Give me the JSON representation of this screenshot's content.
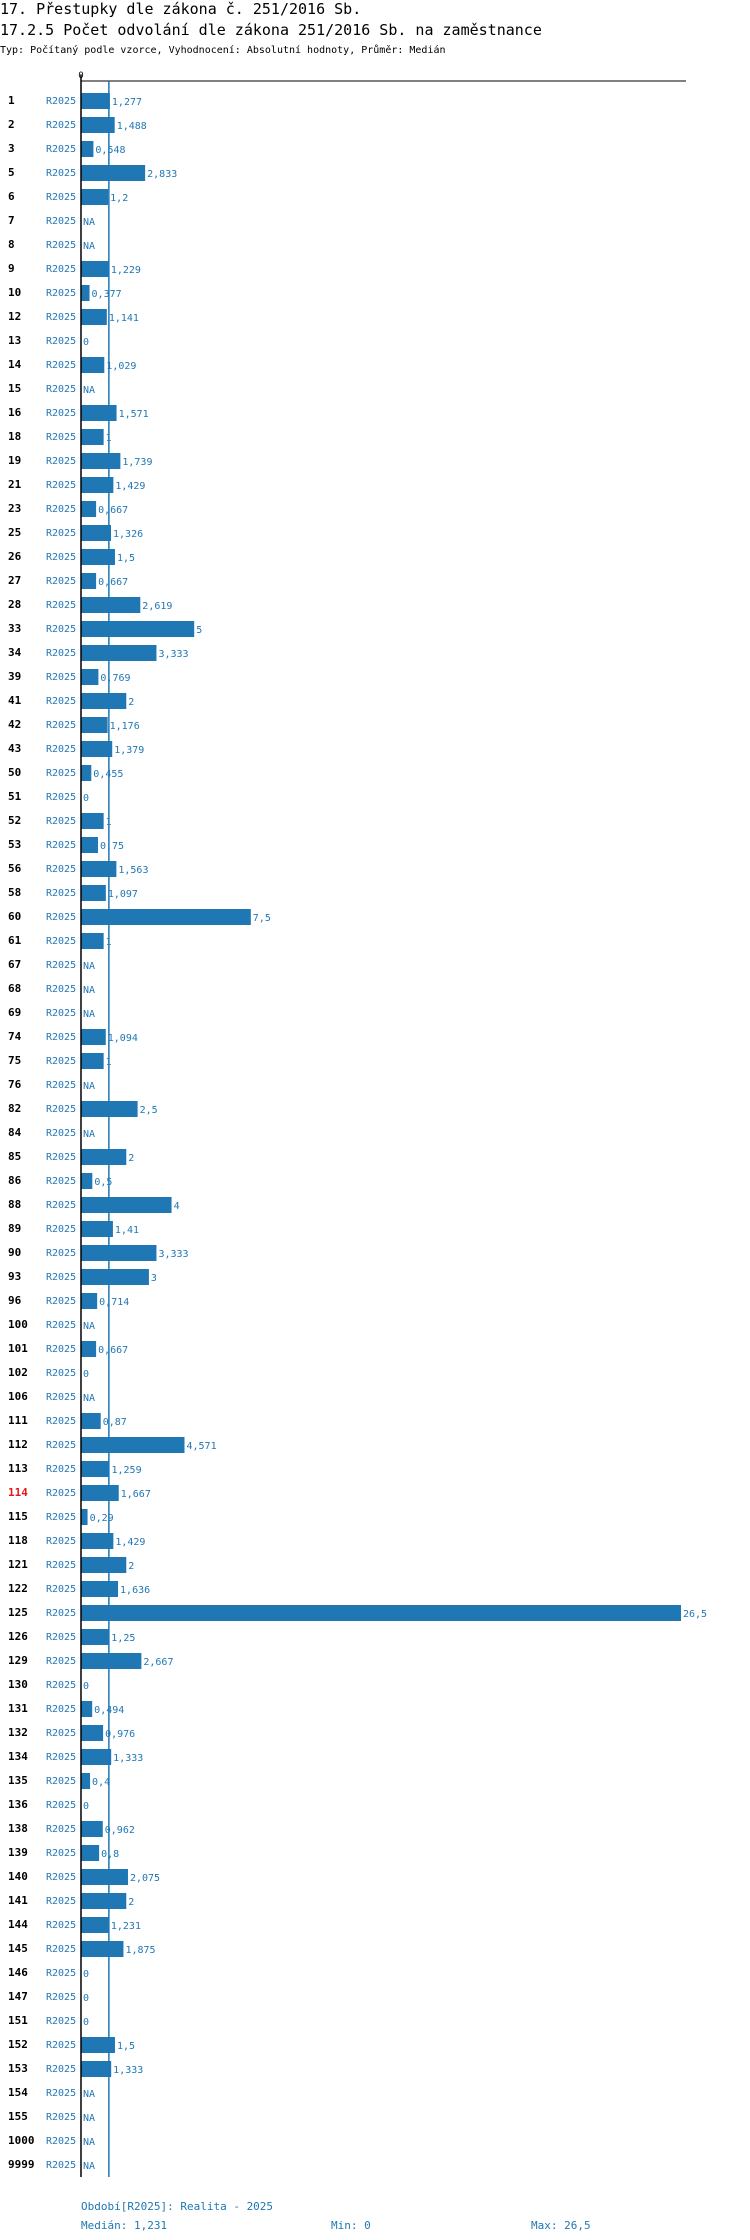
{
  "header": {
    "title": "17. Přestupky dle zákona č. 251/2016 Sb.",
    "subtitle": "17.2.5 Počet odvolání dle zákona 251/2016 Sb. na zaměstnance",
    "meta": "Typ: Počítaný podle vzorce, Vyhodnocení: Absolutní hodnoty, Průměr: Medián"
  },
  "chart_data": {
    "type": "bar",
    "orientation": "horizontal",
    "axis_zero_label": "0",
    "period_label": "R2025",
    "highlight_category": "114",
    "colors": {
      "bar": "#1f77b4",
      "text": "#1f77b4",
      "highlight": "#e31a1c",
      "axis": "#000000"
    },
    "xlim": [
      0,
      26.5
    ],
    "median": 1.231,
    "rows": [
      {
        "id": "1",
        "value": 1.277,
        "label": "1,277"
      },
      {
        "id": "2",
        "value": 1.488,
        "label": "1,488"
      },
      {
        "id": "3",
        "value": 0.548,
        "label": "0,548"
      },
      {
        "id": "5",
        "value": 2.833,
        "label": "2,833"
      },
      {
        "id": "6",
        "value": 1.2,
        "label": "1,2"
      },
      {
        "id": "7",
        "value": null,
        "label": "NA"
      },
      {
        "id": "8",
        "value": null,
        "label": "NA"
      },
      {
        "id": "9",
        "value": 1.229,
        "label": "1,229"
      },
      {
        "id": "10",
        "value": 0.377,
        "label": "0,377"
      },
      {
        "id": "12",
        "value": 1.141,
        "label": "1,141"
      },
      {
        "id": "13",
        "value": 0,
        "label": "0"
      },
      {
        "id": "14",
        "value": 1.029,
        "label": "1,029"
      },
      {
        "id": "15",
        "value": null,
        "label": "NA"
      },
      {
        "id": "16",
        "value": 1.571,
        "label": "1,571"
      },
      {
        "id": "18",
        "value": 1,
        "label": "1"
      },
      {
        "id": "19",
        "value": 1.739,
        "label": "1,739"
      },
      {
        "id": "21",
        "value": 1.429,
        "label": "1,429"
      },
      {
        "id": "23",
        "value": 0.667,
        "label": "0,667"
      },
      {
        "id": "25",
        "value": 1.326,
        "label": "1,326"
      },
      {
        "id": "26",
        "value": 1.5,
        "label": "1,5"
      },
      {
        "id": "27",
        "value": 0.667,
        "label": "0,667"
      },
      {
        "id": "28",
        "value": 2.619,
        "label": "2,619"
      },
      {
        "id": "33",
        "value": 5,
        "label": "5"
      },
      {
        "id": "34",
        "value": 3.333,
        "label": "3,333"
      },
      {
        "id": "39",
        "value": 0.769,
        "label": "0,769"
      },
      {
        "id": "41",
        "value": 2,
        "label": "2"
      },
      {
        "id": "42",
        "value": 1.176,
        "label": "1,176"
      },
      {
        "id": "43",
        "value": 1.379,
        "label": "1,379"
      },
      {
        "id": "50",
        "value": 0.455,
        "label": "0,455"
      },
      {
        "id": "51",
        "value": 0,
        "label": "0"
      },
      {
        "id": "52",
        "value": 1,
        "label": "1"
      },
      {
        "id": "53",
        "value": 0.75,
        "label": "0,75"
      },
      {
        "id": "56",
        "value": 1.563,
        "label": "1,563"
      },
      {
        "id": "58",
        "value": 1.097,
        "label": "1,097"
      },
      {
        "id": "60",
        "value": 7.5,
        "label": "7,5"
      },
      {
        "id": "61",
        "value": 1,
        "label": "1"
      },
      {
        "id": "67",
        "value": null,
        "label": "NA"
      },
      {
        "id": "68",
        "value": null,
        "label": "NA"
      },
      {
        "id": "69",
        "value": null,
        "label": "NA"
      },
      {
        "id": "74",
        "value": 1.094,
        "label": "1,094"
      },
      {
        "id": "75",
        "value": 1,
        "label": "1"
      },
      {
        "id": "76",
        "value": null,
        "label": "NA"
      },
      {
        "id": "82",
        "value": 2.5,
        "label": "2,5"
      },
      {
        "id": "84",
        "value": null,
        "label": "NA"
      },
      {
        "id": "85",
        "value": 2,
        "label": "2"
      },
      {
        "id": "86",
        "value": 0.5,
        "label": "0,5"
      },
      {
        "id": "88",
        "value": 4,
        "label": "4"
      },
      {
        "id": "89",
        "value": 1.41,
        "label": "1,41"
      },
      {
        "id": "90",
        "value": 3.333,
        "label": "3,333"
      },
      {
        "id": "93",
        "value": 3,
        "label": "3"
      },
      {
        "id": "96",
        "value": 0.714,
        "label": "0,714"
      },
      {
        "id": "100",
        "value": null,
        "label": "NA"
      },
      {
        "id": "101",
        "value": 0.667,
        "label": "0,667"
      },
      {
        "id": "102",
        "value": 0,
        "label": "0"
      },
      {
        "id": "106",
        "value": null,
        "label": "NA"
      },
      {
        "id": "111",
        "value": 0.87,
        "label": "0,87"
      },
      {
        "id": "112",
        "value": 4.571,
        "label": "4,571"
      },
      {
        "id": "113",
        "value": 1.259,
        "label": "1,259"
      },
      {
        "id": "114",
        "value": 1.667,
        "label": "1,667"
      },
      {
        "id": "115",
        "value": 0.29,
        "label": "0,29"
      },
      {
        "id": "118",
        "value": 1.429,
        "label": "1,429"
      },
      {
        "id": "121",
        "value": 2,
        "label": "2"
      },
      {
        "id": "122",
        "value": 1.636,
        "label": "1,636"
      },
      {
        "id": "125",
        "value": 26.5,
        "label": "26,5"
      },
      {
        "id": "126",
        "value": 1.25,
        "label": "1,25"
      },
      {
        "id": "129",
        "value": 2.667,
        "label": "2,667"
      },
      {
        "id": "130",
        "value": 0,
        "label": "0"
      },
      {
        "id": "131",
        "value": 0.494,
        "label": "0,494"
      },
      {
        "id": "132",
        "value": 0.976,
        "label": "0,976"
      },
      {
        "id": "134",
        "value": 1.333,
        "label": "1,333"
      },
      {
        "id": "135",
        "value": 0.4,
        "label": "0,4"
      },
      {
        "id": "136",
        "value": 0,
        "label": "0"
      },
      {
        "id": "138",
        "value": 0.962,
        "label": "0,962"
      },
      {
        "id": "139",
        "value": 0.8,
        "label": "0,8"
      },
      {
        "id": "140",
        "value": 2.075,
        "label": "2,075"
      },
      {
        "id": "141",
        "value": 2,
        "label": "2"
      },
      {
        "id": "144",
        "value": 1.231,
        "label": "1,231"
      },
      {
        "id": "145",
        "value": 1.875,
        "label": "1,875"
      },
      {
        "id": "146",
        "value": 0,
        "label": "0"
      },
      {
        "id": "147",
        "value": 0,
        "label": "0"
      },
      {
        "id": "151",
        "value": 0,
        "label": "0"
      },
      {
        "id": "152",
        "value": 1.5,
        "label": "1,5"
      },
      {
        "id": "153",
        "value": 1.333,
        "label": "1,333"
      },
      {
        "id": "154",
        "value": null,
        "label": "NA"
      },
      {
        "id": "155",
        "value": null,
        "label": "NA"
      },
      {
        "id": "1000",
        "value": null,
        "label": "NA"
      },
      {
        "id": "9999",
        "value": null,
        "label": "NA"
      }
    ]
  },
  "footer": {
    "period": "Období[R2025]: Realita - 2025",
    "median": "Medián: 1,231",
    "min": "Min: 0",
    "max": "Max: 26,5"
  }
}
